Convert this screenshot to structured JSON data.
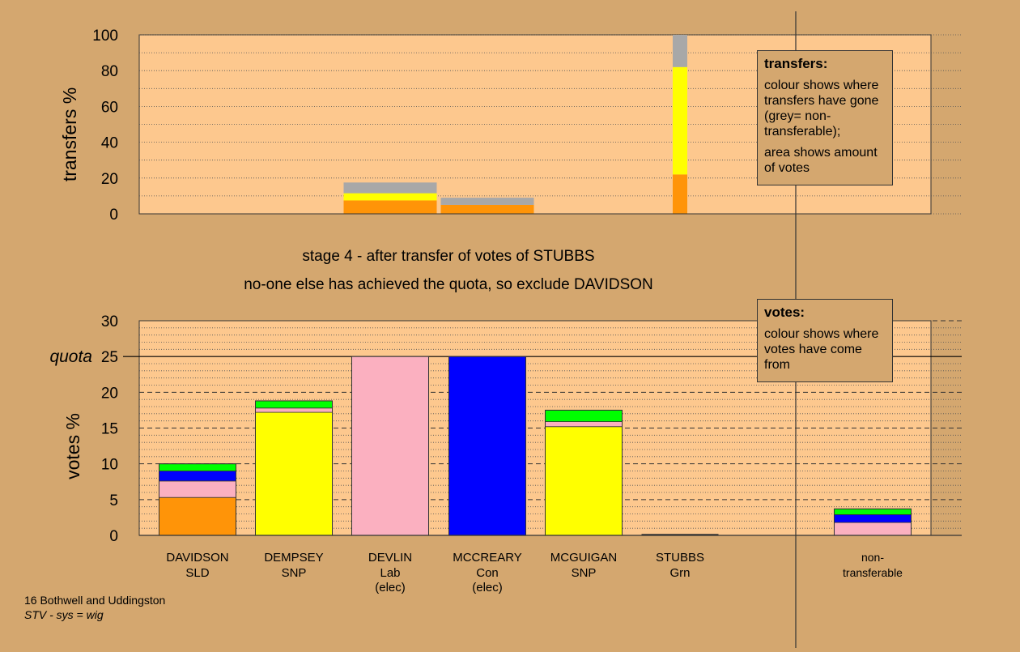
{
  "stage_line": "stage 4 - after transfer of votes of STUBBS",
  "action_line": "no-one else has achieved the quota, so exclude DAVIDSON",
  "footer": {
    "constituency": "16 Bothwell and Uddingston",
    "system": "STV - sys = wig"
  },
  "transfers_legend": {
    "title": "transfers:",
    "line1": "colour shows where transfers have gone (grey= non-transferable);",
    "line2": "area shows amount of votes"
  },
  "votes_legend": {
    "title": "votes:",
    "line1": "colour shows where votes have come from"
  },
  "colors": {
    "background": "#d4a76f",
    "plot_bg": "#fdc88e",
    "SLD": "#ff9408",
    "SNP": "#ffff00",
    "Lab": "#fbb0c0",
    "Con": "#0000ff",
    "Grn": "#00ff00",
    "nontransferable": "#a8a8a8"
  },
  "chart_data": [
    {
      "type": "bar",
      "subtype": "stacked",
      "ylabel": "transfers %",
      "ylim": [
        0,
        100
      ],
      "yticks": [
        0,
        20,
        40,
        60,
        80,
        100
      ],
      "grid": "dotted",
      "bars": [
        {
          "candidate": "DEVLIN",
          "segments": [
            {
              "color_key": "SLD",
              "value": 7.5
            },
            {
              "color_key": "SNP",
              "value": 4
            },
            {
              "color_key": "nontransferable",
              "value": 6
            }
          ]
        },
        {
          "candidate": "MCCREARY",
          "segments": [
            {
              "color_key": "SLD",
              "value": 5
            },
            {
              "color_key": "nontransferable",
              "value": 4
            }
          ]
        },
        {
          "candidate": "STUBBS",
          "segments": [
            {
              "color_key": "SLD",
              "value": 22
            },
            {
              "color_key": "SNP",
              "value": 60
            },
            {
              "color_key": "nontransferable",
              "value": 18
            }
          ]
        }
      ]
    },
    {
      "type": "bar",
      "subtype": "stacked",
      "ylabel": "votes %",
      "ylim": [
        0,
        30
      ],
      "yticks": [
        0,
        5,
        10,
        15,
        20,
        25,
        30
      ],
      "quota": 25,
      "quota_label": "quota",
      "categories": [
        {
          "name": "DAVIDSON",
          "party": "SLD",
          "note": ""
        },
        {
          "name": "DEMPSEY",
          "party": "SNP",
          "note": ""
        },
        {
          "name": "DEVLIN",
          "party": "Lab",
          "note": "(elec)"
        },
        {
          "name": "MCCREARY",
          "party": "Con",
          "note": "(elec)"
        },
        {
          "name": "MCGUIGAN",
          "party": "SNP",
          "note": ""
        },
        {
          "name": "STUBBS",
          "party": "Grn",
          "note": ""
        },
        {
          "name": "non-",
          "party": "transferable",
          "note": ""
        }
      ],
      "bars": [
        [
          {
            "color_key": "SLD",
            "value": 5.3
          },
          {
            "color_key": "Lab",
            "value": 2.3
          },
          {
            "color_key": "Con",
            "value": 1.4
          },
          {
            "color_key": "Grn",
            "value": 1.0
          }
        ],
        [
          {
            "color_key": "SNP",
            "value": 17.2
          },
          {
            "color_key": "Lab",
            "value": 0.6
          },
          {
            "color_key": "Grn",
            "value": 1.0
          }
        ],
        [
          {
            "color_key": "Lab",
            "value": 25
          }
        ],
        [
          {
            "color_key": "Con",
            "value": 25
          }
        ],
        [
          {
            "color_key": "SNP",
            "value": 15.2
          },
          {
            "color_key": "Lab",
            "value": 0.7
          },
          {
            "color_key": "Grn",
            "value": 1.6
          }
        ],
        [
          {
            "color_key": "Grn",
            "value": 0
          }
        ],
        [
          {
            "color_key": "Lab",
            "value": 1.8
          },
          {
            "color_key": "Con",
            "value": 1.1
          },
          {
            "color_key": "Grn",
            "value": 0.8
          }
        ]
      ]
    }
  ]
}
